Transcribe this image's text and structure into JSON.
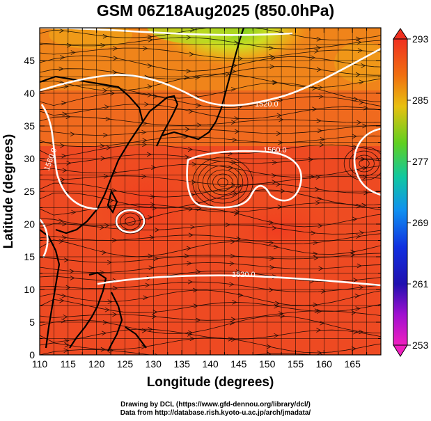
{
  "title": "GSM 06Z18Aug2025 (850.0hPa)",
  "xlabel": "Longitude (degrees)",
  "ylabel": "Latitude  (degrees)",
  "x_ticks": [
    "110",
    "115",
    "120",
    "125",
    "130",
    "135",
    "140",
    "145",
    "150",
    "155",
    "160",
    "165"
  ],
  "y_ticks": [
    "0",
    "5",
    "10",
    "15",
    "20",
    "25",
    "30",
    "35",
    "40",
    "45"
  ],
  "colorbar_ticks": [
    "293",
    "285",
    "277",
    "269",
    "261",
    "253"
  ],
  "contour_labels": [
    "1520.0",
    "1560.0",
    "1520.0",
    "1560.0"
  ],
  "credit_line1": "Drawing by DCL (https://www.gfd-dennou.org/library/dcl/)",
  "credit_line2": "Data from http://database.rish.kyoto-u.ac.jp/arch/jmadata/",
  "colors": {
    "warm": "#ee4422",
    "orange": "#f07a1a",
    "yellow": "#dddd22",
    "green": "#66cc22",
    "contour": "#ffffff",
    "coast": "#000000"
  },
  "chart_data": {
    "type": "heatmap",
    "variable": "850 hPa temperature with streamlines and geopotential height contours",
    "x_range": [
      110,
      170
    ],
    "y_range": [
      0,
      50
    ],
    "colorbar_range": [
      253,
      293
    ],
    "colorbar_ticks": [
      293,
      285,
      277,
      269,
      261,
      253
    ],
    "contour_levels": [
      1520.0,
      1560.0
    ]
  }
}
